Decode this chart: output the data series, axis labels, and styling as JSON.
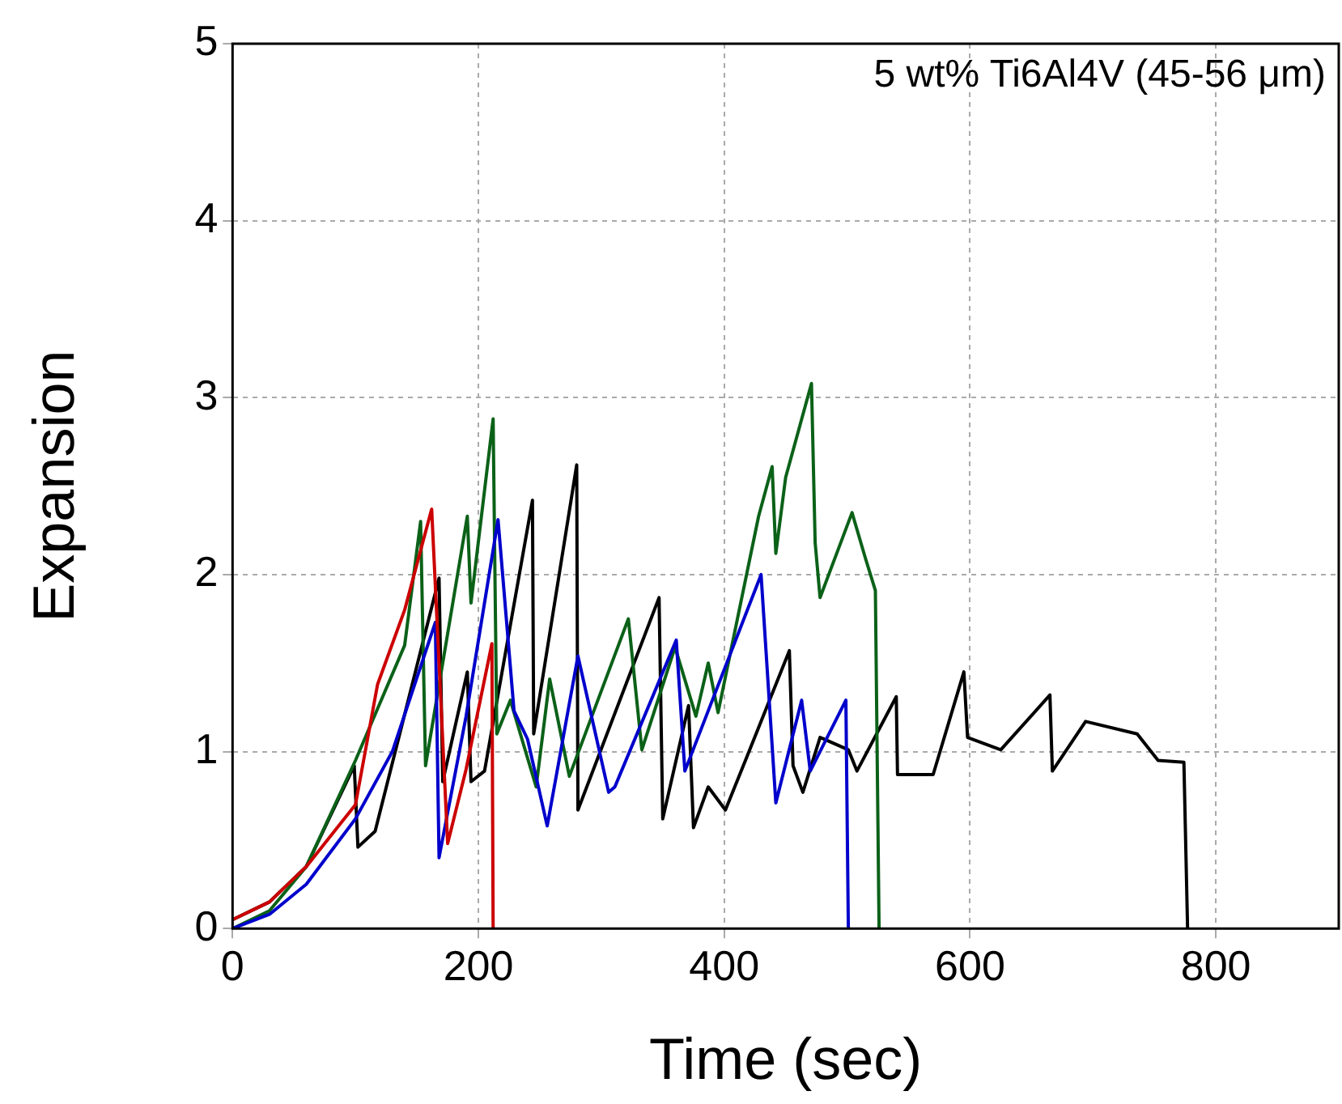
{
  "chart_data": {
    "type": "line",
    "xlabel": "Time (sec)",
    "ylabel": "Expansion",
    "annotations": [
      "5 wt% Ti6Al4V (45-56 μm)"
    ],
    "xlim": [
      0,
      900
    ],
    "xticks": [
      0,
      200,
      400,
      600,
      800
    ],
    "ylim": [
      0,
      5
    ],
    "yticks": [
      0,
      1,
      2,
      3,
      4,
      5
    ],
    "grid": true,
    "marker": "none",
    "line_style": "solid",
    "series": [
      {
        "color": "#cc0000",
        "x": [
          0,
          30,
          60,
          100,
          118,
          140,
          162,
          175,
          190,
          211,
          212
        ],
        "values": [
          0.05,
          0.15,
          0.35,
          0.7,
          1.38,
          1.8,
          2.37,
          0.48,
          0.9,
          1.61,
          0
        ]
      },
      {
        "color": "#0000cc",
        "x": [
          0,
          30,
          60,
          100,
          130,
          165,
          168,
          190,
          216,
          229,
          240,
          256,
          281,
          306,
          311,
          361,
          368,
          430,
          442,
          463,
          470,
          499,
          501
        ],
        "values": [
          0,
          0.08,
          0.25,
          0.62,
          1.0,
          1.73,
          0.4,
          1.2,
          2.31,
          1.23,
          1.07,
          0.58,
          1.54,
          0.77,
          0.8,
          1.63,
          0.89,
          2.0,
          0.71,
          1.29,
          0.89,
          1.29,
          0
        ]
      },
      {
        "color": "#0b6118",
        "x": [
          0,
          30,
          60,
          100,
          140,
          153,
          157,
          191,
          194,
          212,
          215,
          226,
          247,
          258,
          274,
          322,
          333,
          360,
          377,
          387,
          395,
          428,
          439,
          442,
          450,
          471,
          474,
          478,
          504,
          515,
          523,
          526
        ],
        "values": [
          0,
          0.1,
          0.35,
          0.95,
          1.6,
          2.3,
          0.92,
          2.33,
          1.84,
          2.88,
          1.1,
          1.29,
          0.8,
          1.41,
          0.86,
          1.75,
          1.01,
          1.59,
          1.2,
          1.5,
          1.22,
          2.33,
          2.61,
          2.12,
          2.55,
          3.08,
          2.18,
          1.87,
          2.35,
          2.09,
          1.91,
          0
        ]
      },
      {
        "color": "#000000",
        "x": [
          0,
          30,
          60,
          99,
          102,
          116,
          168,
          171,
          191,
          194,
          205,
          244,
          245,
          280,
          281,
          347,
          350,
          371,
          375,
          387,
          401,
          419,
          453,
          456,
          464,
          478,
          501,
          508,
          540,
          541,
          570,
          595,
          598,
          625,
          665,
          667,
          694,
          736,
          753,
          774,
          777
        ],
        "values": [
          0.05,
          0.15,
          0.35,
          0.92,
          0.46,
          0.55,
          1.98,
          0.83,
          1.45,
          0.83,
          0.89,
          2.42,
          1.1,
          2.62,
          0.67,
          1.87,
          0.62,
          1.26,
          0.57,
          0.8,
          0.67,
          0.98,
          1.57,
          0.92,
          0.77,
          1.08,
          1.01,
          0.89,
          1.31,
          0.87,
          0.87,
          1.45,
          1.08,
          1.01,
          1.32,
          0.89,
          1.17,
          1.1,
          0.95,
          0.94,
          0
        ]
      }
    ]
  }
}
